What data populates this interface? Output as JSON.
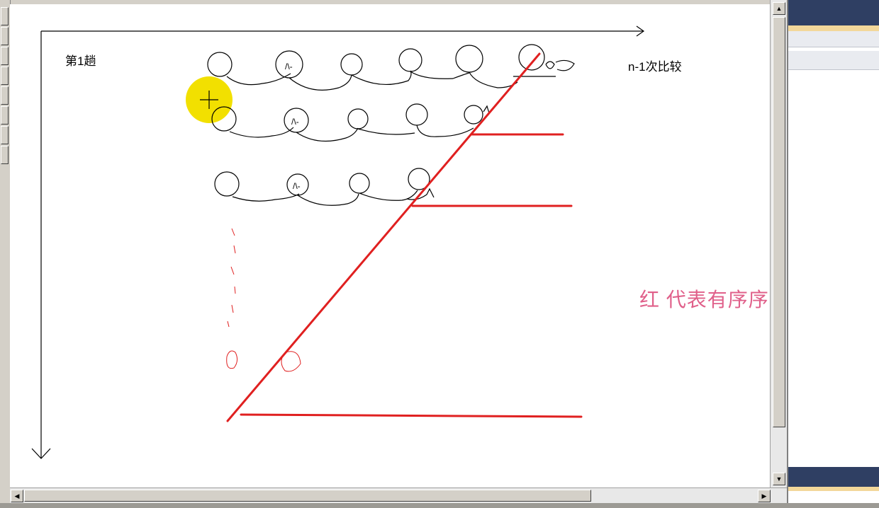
{
  "canvas": {
    "pass_label": "第1趟",
    "compare_label": "n-1次比较",
    "legend_label": "红 代表有序序列",
    "ink_color": "#000000",
    "marker_color": "#e02020",
    "highlight_color": "#f2e000",
    "legend_color": "#e0608a"
  },
  "scrollbars": {
    "up_arrow": "▲",
    "down_arrow": "▼",
    "left_arrow": "◀",
    "right_arrow": "▶"
  }
}
